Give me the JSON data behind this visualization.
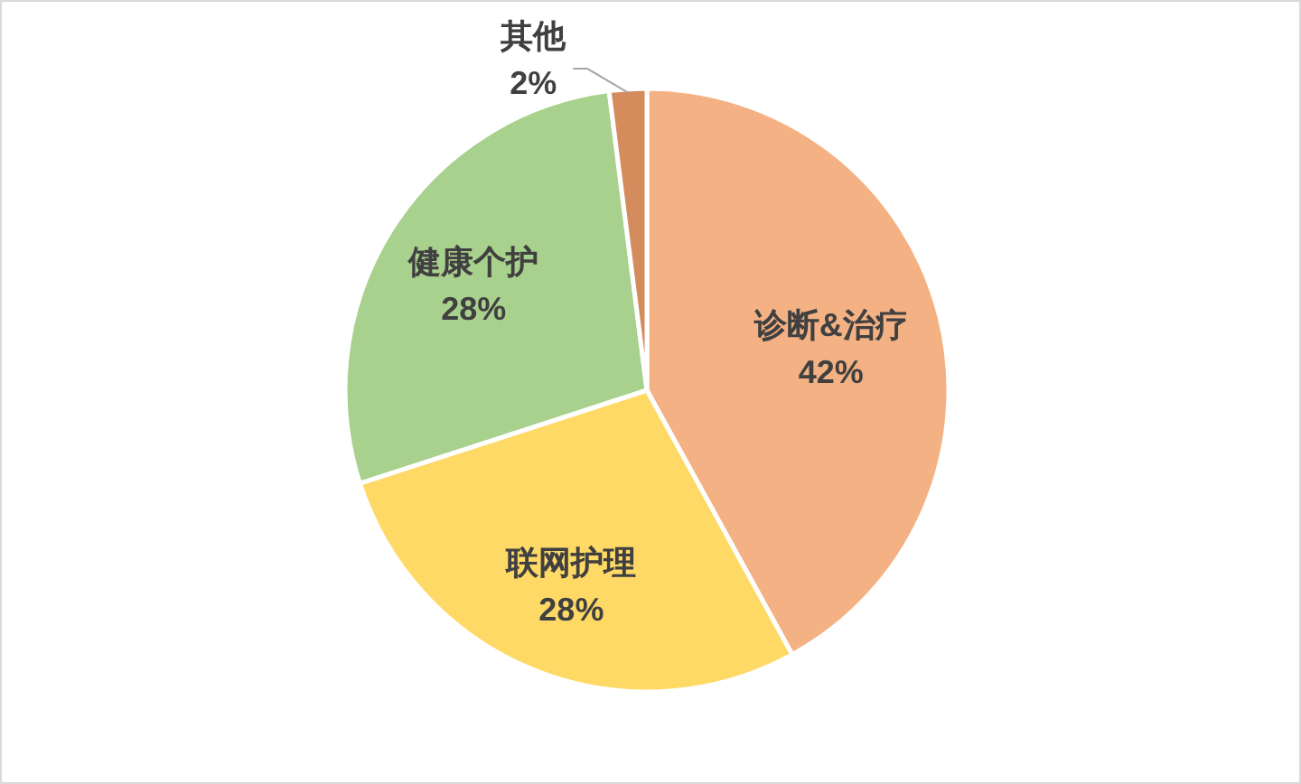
{
  "chart_data": {
    "type": "pie",
    "categories": [
      "诊断&治疗",
      "联网护理",
      "健康个护",
      "其他"
    ],
    "values": [
      42,
      28,
      28,
      2
    ],
    "colors": [
      "#f4b183",
      "#ffd966",
      "#a9d18e",
      "#d58c5c"
    ],
    "value_labels": [
      "42%",
      "28%",
      "28%",
      "2%"
    ]
  }
}
